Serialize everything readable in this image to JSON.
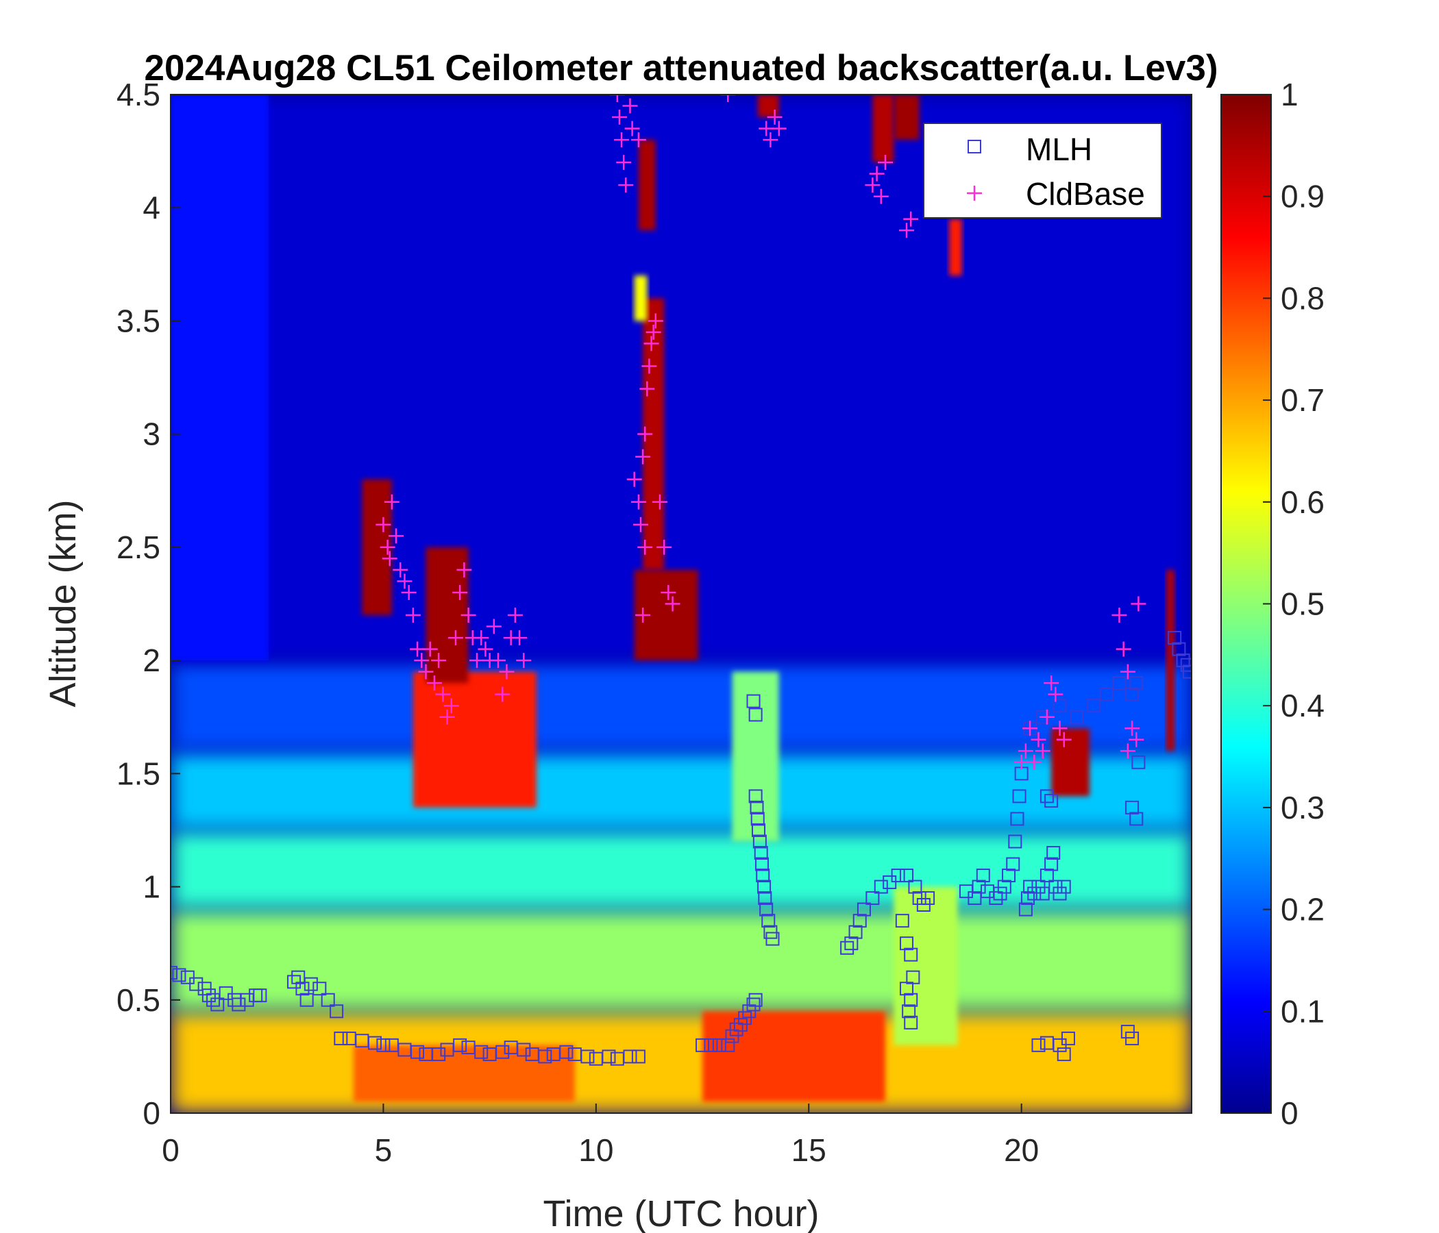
{
  "chart_data": {
    "type": "heatmap",
    "title": "2024Aug28 CL51 Ceilometer attenuated backscatter(a.u. Lev3)",
    "xlabel": "Time (UTC hour)",
    "ylabel": "Altitude (km)",
    "xlim": [
      0,
      24
    ],
    "ylim": [
      0,
      4.5
    ],
    "xticks": [
      0,
      5,
      10,
      15,
      20
    ],
    "xtick_labels": [
      "0",
      "5",
      "10",
      "15",
      "20"
    ],
    "yticks": [
      0,
      0.5,
      1,
      1.5,
      2,
      2.5,
      3,
      3.5,
      4,
      4.5
    ],
    "ytick_labels": [
      "0",
      "0.5",
      "1",
      "1.5",
      "2",
      "2.5",
      "3",
      "3.5",
      "4",
      "4.5"
    ],
    "colorbar": {
      "colormap": "jet",
      "range": [
        0,
        1
      ],
      "ticks": [
        0,
        0.1,
        0.2,
        0.3,
        0.4,
        0.5,
        0.6,
        0.7,
        0.8,
        0.9,
        1
      ],
      "tick_labels": [
        "0",
        "0.1",
        "0.2",
        "0.3",
        "0.4",
        "0.5",
        "0.6",
        "0.7",
        "0.8",
        "0.9",
        "1"
      ]
    },
    "legend": {
      "position": "top-right",
      "entries": [
        {
          "label": "MLH",
          "marker": "square",
          "color": "#3b3bd6"
        },
        {
          "label": "CldBase",
          "marker": "plus",
          "color": "#ff2cd9"
        }
      ]
    },
    "backscatter_fields": [
      {
        "t0": 0,
        "t1": 24,
        "z0": 0,
        "z1": 0.45,
        "value": 0.68
      },
      {
        "t0": 0,
        "t1": 24,
        "z0": 0.45,
        "z1": 0.9,
        "value": 0.52
      },
      {
        "t0": 0,
        "t1": 24,
        "z0": 0.9,
        "z1": 1.25,
        "value": 0.42
      },
      {
        "t0": 0,
        "t1": 24,
        "z0": 1.25,
        "z1": 1.6,
        "value": 0.32
      },
      {
        "t0": 0,
        "t1": 24,
        "z0": 1.6,
        "z1": 2.0,
        "value": 0.2
      },
      {
        "t0": 0,
        "t1": 24,
        "z0": 2.0,
        "z1": 4.5,
        "value": 0.08
      },
      {
        "t0": 0,
        "t1": 2.3,
        "z0": 2.0,
        "z1": 4.5,
        "value": 0.14
      },
      {
        "t0": 5.7,
        "t1": 8.6,
        "z0": 1.35,
        "z1": 1.95,
        "value": 0.85
      },
      {
        "t0": 12.5,
        "t1": 16.8,
        "z0": 0.05,
        "z1": 0.45,
        "value": 0.82
      },
      {
        "t0": 4.3,
        "t1": 9.5,
        "z0": 0.05,
        "z1": 0.3,
        "value": 0.78
      },
      {
        "t0": 17.0,
        "t1": 18.5,
        "z0": 0.3,
        "z1": 1.0,
        "value": 0.55
      },
      {
        "t0": 13.2,
        "t1": 14.3,
        "z0": 1.2,
        "z1": 1.95,
        "value": 0.5
      },
      {
        "t0": 4.5,
        "t1": 5.2,
        "z0": 2.2,
        "z1": 2.8,
        "value": 0.97
      },
      {
        "t0": 6.0,
        "t1": 7.0,
        "z0": 1.9,
        "z1": 2.5,
        "value": 0.97
      },
      {
        "t0": 10.9,
        "t1": 12.4,
        "z0": 2.0,
        "z1": 2.4,
        "value": 0.97
      },
      {
        "t0": 11.1,
        "t1": 11.6,
        "z0": 2.4,
        "z1": 3.6,
        "value": 0.95
      },
      {
        "t0": 10.9,
        "t1": 11.2,
        "z0": 3.5,
        "z1": 3.7,
        "value": 0.62
      },
      {
        "t0": 11.0,
        "t1": 11.4,
        "z0": 3.9,
        "z1": 4.3,
        "value": 0.96
      },
      {
        "t0": 13.8,
        "t1": 14.3,
        "z0": 4.4,
        "z1": 4.5,
        "value": 0.95
      },
      {
        "t0": 16.5,
        "t1": 17.0,
        "z0": 4.2,
        "z1": 4.5,
        "value": 0.95
      },
      {
        "t0": 17.0,
        "t1": 17.6,
        "z0": 4.3,
        "z1": 4.5,
        "value": 0.97
      },
      {
        "t0": 18.3,
        "t1": 18.6,
        "z0": 3.7,
        "z1": 3.95,
        "value": 0.85
      },
      {
        "t0": 20.7,
        "t1": 21.6,
        "z0": 1.4,
        "z1": 1.7,
        "value": 0.95
      },
      {
        "t0": 23.4,
        "t1": 23.6,
        "z0": 1.6,
        "z1": 2.4,
        "value": 0.95
      }
    ],
    "series": [
      {
        "name": "MLH",
        "marker": "square",
        "color": "#3b3bd6",
        "points": [
          [
            0.0,
            0.62
          ],
          [
            0.2,
            0.61
          ],
          [
            0.4,
            0.6
          ],
          [
            0.6,
            0.57
          ],
          [
            0.8,
            0.55
          ],
          [
            0.9,
            0.52
          ],
          [
            1.0,
            0.5
          ],
          [
            1.1,
            0.48
          ],
          [
            1.3,
            0.53
          ],
          [
            1.5,
            0.5
          ],
          [
            1.6,
            0.48
          ],
          [
            1.8,
            0.5
          ],
          [
            2.0,
            0.52
          ],
          [
            2.1,
            0.52
          ],
          [
            2.9,
            0.58
          ],
          [
            3.0,
            0.6
          ],
          [
            3.1,
            0.55
          ],
          [
            3.2,
            0.5
          ],
          [
            3.3,
            0.57
          ],
          [
            3.5,
            0.55
          ],
          [
            3.7,
            0.5
          ],
          [
            3.9,
            0.45
          ],
          [
            4.0,
            0.33
          ],
          [
            4.2,
            0.33
          ],
          [
            4.5,
            0.32
          ],
          [
            4.8,
            0.31
          ],
          [
            5.0,
            0.3
          ],
          [
            5.2,
            0.3
          ],
          [
            5.5,
            0.28
          ],
          [
            5.8,
            0.27
          ],
          [
            6.0,
            0.26
          ],
          [
            6.3,
            0.26
          ],
          [
            6.5,
            0.28
          ],
          [
            6.8,
            0.3
          ],
          [
            7.0,
            0.29
          ],
          [
            7.3,
            0.27
          ],
          [
            7.5,
            0.26
          ],
          [
            7.8,
            0.27
          ],
          [
            8.0,
            0.29
          ],
          [
            8.3,
            0.28
          ],
          [
            8.5,
            0.26
          ],
          [
            8.8,
            0.25
          ],
          [
            9.0,
            0.26
          ],
          [
            9.3,
            0.27
          ],
          [
            9.5,
            0.26
          ],
          [
            9.8,
            0.25
          ],
          [
            10.0,
            0.24
          ],
          [
            10.3,
            0.25
          ],
          [
            10.5,
            0.24
          ],
          [
            10.8,
            0.25
          ],
          [
            11.0,
            0.25
          ],
          [
            12.5,
            0.3
          ],
          [
            12.7,
            0.3
          ],
          [
            12.9,
            0.3
          ],
          [
            13.1,
            0.3
          ],
          [
            13.2,
            0.34
          ],
          [
            13.3,
            0.37
          ],
          [
            13.4,
            0.39
          ],
          [
            13.5,
            0.42
          ],
          [
            13.6,
            0.45
          ],
          [
            13.7,
            0.48
          ],
          [
            13.75,
            0.5
          ],
          [
            13.7,
            1.82
          ],
          [
            13.75,
            1.76
          ],
          [
            13.75,
            1.4
          ],
          [
            13.78,
            1.35
          ],
          [
            13.8,
            1.3
          ],
          [
            13.82,
            1.25
          ],
          [
            13.85,
            1.2
          ],
          [
            13.88,
            1.15
          ],
          [
            13.9,
            1.1
          ],
          [
            13.92,
            1.05
          ],
          [
            13.95,
            1.0
          ],
          [
            13.97,
            0.95
          ],
          [
            14.0,
            0.9
          ],
          [
            14.05,
            0.85
          ],
          [
            14.1,
            0.8
          ],
          [
            14.15,
            0.77
          ],
          [
            15.9,
            0.73
          ],
          [
            16.0,
            0.75
          ],
          [
            16.1,
            0.8
          ],
          [
            16.2,
            0.85
          ],
          [
            16.3,
            0.9
          ],
          [
            16.5,
            0.95
          ],
          [
            16.7,
            1.0
          ],
          [
            16.9,
            1.02
          ],
          [
            17.1,
            1.05
          ],
          [
            17.3,
            1.05
          ],
          [
            17.5,
            1.0
          ],
          [
            17.6,
            0.95
          ],
          [
            17.7,
            0.92
          ],
          [
            17.8,
            0.95
          ],
          [
            17.2,
            0.85
          ],
          [
            17.3,
            0.75
          ],
          [
            17.4,
            0.7
          ],
          [
            17.3,
            0.55
          ],
          [
            17.4,
            0.5
          ],
          [
            17.35,
            0.45
          ],
          [
            17.4,
            0.4
          ],
          [
            17.45,
            0.6
          ],
          [
            18.7,
            0.98
          ],
          [
            18.9,
            0.95
          ],
          [
            19.0,
            1.0
          ],
          [
            19.1,
            1.05
          ],
          [
            19.2,
            0.98
          ],
          [
            19.4,
            0.95
          ],
          [
            19.5,
            0.97
          ],
          [
            19.6,
            1.0
          ],
          [
            19.7,
            1.05
          ],
          [
            19.8,
            1.1
          ],
          [
            19.85,
            1.2
          ],
          [
            19.9,
            1.3
          ],
          [
            19.95,
            1.4
          ],
          [
            20.0,
            1.5
          ],
          [
            20.1,
            0.9
          ],
          [
            20.15,
            0.95
          ],
          [
            20.2,
            1.0
          ],
          [
            20.3,
            0.97
          ],
          [
            20.4,
            1.0
          ],
          [
            20.5,
            0.97
          ],
          [
            20.6,
            1.05
          ],
          [
            20.7,
            1.1
          ],
          [
            20.75,
            1.15
          ],
          [
            20.8,
            1.0
          ],
          [
            20.9,
            0.97
          ],
          [
            21.0,
            1.0
          ],
          [
            20.6,
            1.4
          ],
          [
            20.7,
            1.38
          ],
          [
            22.6,
            1.35
          ],
          [
            22.7,
            1.3
          ],
          [
            22.75,
            1.55
          ],
          [
            20.4,
            0.3
          ],
          [
            20.6,
            0.31
          ],
          [
            20.9,
            0.3
          ],
          [
            21.0,
            0.26
          ],
          [
            21.1,
            0.33
          ],
          [
            22.5,
            0.36
          ],
          [
            22.6,
            0.33
          ],
          [
            20.2,
            1.7
          ],
          [
            20.5,
            1.75
          ],
          [
            20.9,
            1.8
          ],
          [
            21.3,
            1.75
          ],
          [
            21.7,
            1.8
          ],
          [
            22.0,
            1.85
          ],
          [
            22.3,
            1.9
          ],
          [
            22.6,
            1.85
          ],
          [
            22.7,
            1.9
          ],
          [
            23.6,
            2.1
          ],
          [
            23.7,
            2.05
          ],
          [
            23.8,
            2.0
          ],
          [
            23.9,
            1.98
          ],
          [
            23.95,
            1.95
          ]
        ]
      },
      {
        "name": "CldBase",
        "marker": "plus",
        "color": "#ff2cd9",
        "points": [
          [
            5.0,
            2.6
          ],
          [
            5.1,
            2.5
          ],
          [
            5.15,
            2.45
          ],
          [
            5.2,
            2.7
          ],
          [
            5.3,
            2.55
          ],
          [
            5.4,
            2.4
          ],
          [
            5.5,
            2.35
          ],
          [
            5.6,
            2.3
          ],
          [
            5.7,
            2.2
          ],
          [
            5.8,
            2.05
          ],
          [
            5.9,
            2.0
          ],
          [
            6.0,
            1.95
          ],
          [
            6.1,
            2.05
          ],
          [
            6.2,
            1.9
          ],
          [
            6.3,
            2.0
          ],
          [
            6.4,
            1.85
          ],
          [
            6.5,
            1.75
          ],
          [
            6.6,
            1.8
          ],
          [
            6.7,
            2.1
          ],
          [
            6.8,
            2.3
          ],
          [
            6.9,
            2.4
          ],
          [
            7.0,
            2.2
          ],
          [
            7.1,
            2.1
          ],
          [
            7.2,
            2.0
          ],
          [
            7.3,
            2.1
          ],
          [
            7.4,
            2.05
          ],
          [
            7.5,
            2.0
          ],
          [
            7.6,
            2.15
          ],
          [
            7.7,
            2.0
          ],
          [
            7.8,
            1.85
          ],
          [
            7.9,
            1.95
          ],
          [
            8.0,
            2.1
          ],
          [
            8.1,
            2.2
          ],
          [
            8.2,
            2.1
          ],
          [
            8.3,
            2.0
          ],
          [
            10.5,
            4.5
          ],
          [
            10.55,
            4.4
          ],
          [
            10.6,
            4.3
          ],
          [
            10.65,
            4.2
          ],
          [
            10.7,
            4.1
          ],
          [
            10.8,
            4.45
          ],
          [
            10.85,
            4.35
          ],
          [
            11.0,
            4.3
          ],
          [
            10.9,
            2.8
          ],
          [
            11.0,
            2.7
          ],
          [
            11.05,
            2.6
          ],
          [
            11.1,
            2.9
          ],
          [
            11.15,
            3.0
          ],
          [
            11.2,
            3.2
          ],
          [
            11.25,
            3.3
          ],
          [
            11.3,
            3.4
          ],
          [
            11.35,
            3.45
          ],
          [
            11.4,
            3.5
          ],
          [
            11.1,
            2.2
          ],
          [
            11.15,
            2.5
          ],
          [
            11.5,
            2.7
          ],
          [
            11.6,
            2.5
          ],
          [
            11.7,
            2.3
          ],
          [
            11.8,
            2.25
          ],
          [
            13.1,
            4.5
          ],
          [
            14.0,
            4.35
          ],
          [
            14.1,
            4.3
          ],
          [
            14.2,
            4.4
          ],
          [
            14.3,
            4.35
          ],
          [
            16.5,
            4.1
          ],
          [
            16.6,
            4.15
          ],
          [
            16.7,
            4.05
          ],
          [
            16.8,
            4.2
          ],
          [
            17.3,
            3.9
          ],
          [
            17.4,
            3.95
          ],
          [
            20.0,
            1.55
          ],
          [
            20.1,
            1.6
          ],
          [
            20.2,
            1.7
          ],
          [
            20.3,
            1.55
          ],
          [
            20.4,
            1.65
          ],
          [
            20.5,
            1.6
          ],
          [
            20.6,
            1.75
          ],
          [
            20.7,
            1.9
          ],
          [
            20.8,
            1.85
          ],
          [
            20.9,
            1.7
          ],
          [
            21.0,
            1.65
          ],
          [
            22.3,
            2.2
          ],
          [
            22.4,
            2.05
          ],
          [
            22.5,
            1.95
          ],
          [
            22.6,
            1.7
          ],
          [
            22.7,
            1.65
          ],
          [
            22.75,
            2.25
          ],
          [
            22.5,
            1.6
          ]
        ]
      }
    ]
  }
}
